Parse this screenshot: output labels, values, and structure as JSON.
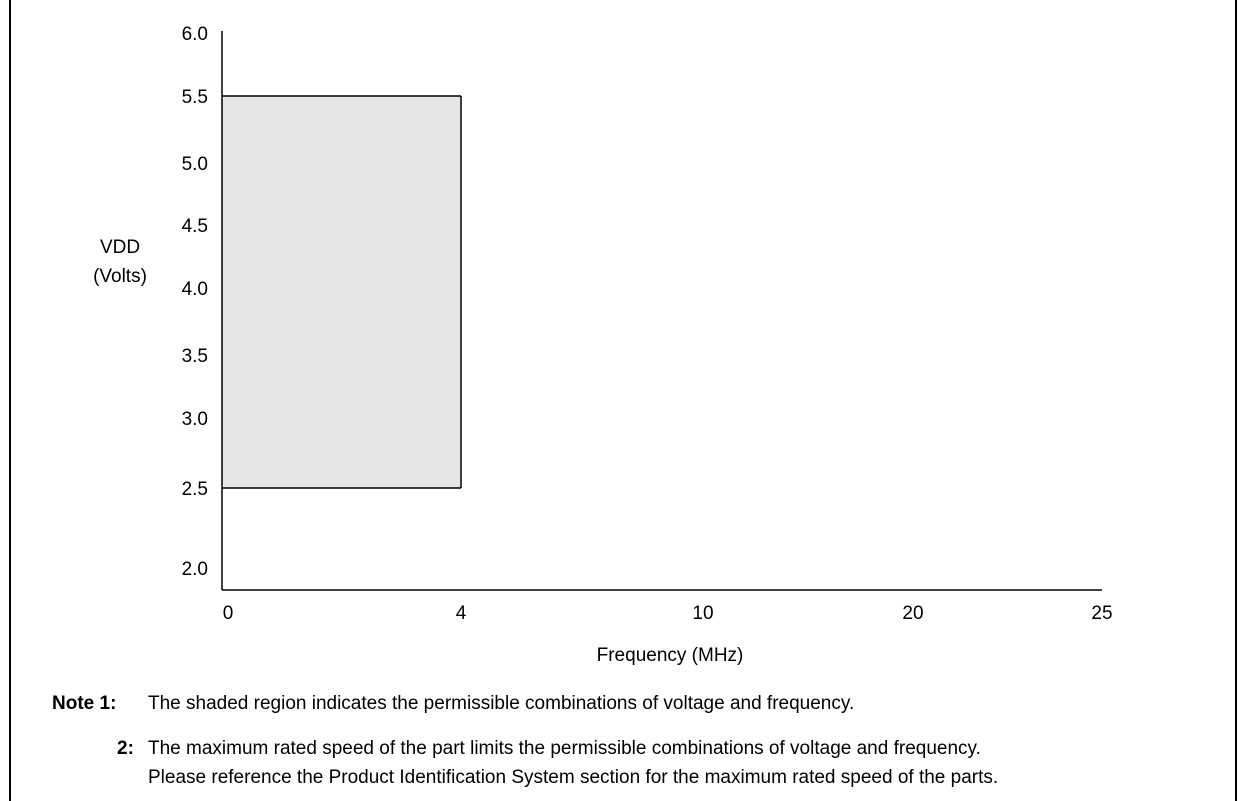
{
  "chart_data": {
    "type": "area",
    "title": "",
    "ylabel_line1": "VDD",
    "ylabel_line2": "(Volts)",
    "xlabel": "Frequency (MHz)",
    "y_ticks": [
      "6.0",
      "5.5",
      "5.0",
      "4.5",
      "4.0",
      "3.5",
      "3.0",
      "2.5",
      "2.0"
    ],
    "x_ticks": [
      "0",
      "4",
      "10",
      "20",
      "25"
    ],
    "ylim": [
      2.0,
      6.0
    ],
    "shaded_region": {
      "x_min": 0,
      "x_max": 4,
      "y_min": 2.5,
      "y_max": 5.5,
      "fill": "#e6e6e6"
    },
    "grid": false
  },
  "notes": {
    "note1_label": "Note 1:",
    "note1_text": "The shaded region indicates the permissible combinations of voltage and frequency.",
    "note2_label": "2:",
    "note2_text_line1": "The maximum rated speed of the part limits the permissible combinations of voltage and frequency.",
    "note2_text_line2": "Please reference the Product Identification System section for the maximum rated speed of the parts."
  }
}
